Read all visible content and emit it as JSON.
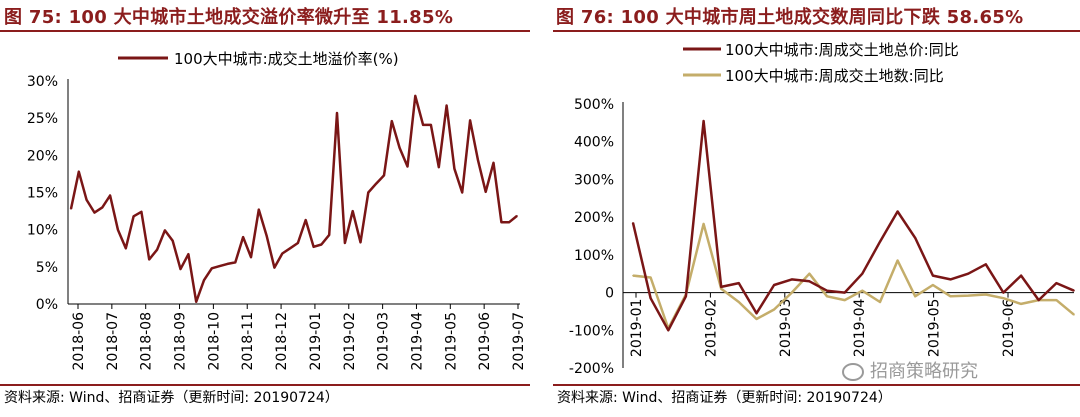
{
  "left": {
    "title": "图 75:  100 大中城市土地成交溢价率微升至 11.85%",
    "source": "资料来源:  Wind、招商证券（更新时间:  20190724）"
  },
  "right": {
    "title": "图 76:  100 大中城市周土地成交数周同比下跌 58.65%",
    "source": "资料来源:  Wind、招商证券（更新时间:  20190724）"
  },
  "watermark": "招商策略研究",
  "colors": {
    "title": "#8b1d1d",
    "series_dark": "#7a1616",
    "series_gold": "#c4ad6a",
    "axis": "#000000"
  },
  "chart_data": [
    {
      "type": "line",
      "legend": [
        "100大中城市:成交土地溢价率(%)"
      ],
      "ylim": [
        0,
        30
      ],
      "yticks": [
        "0%",
        "5%",
        "10%",
        "15%",
        "20%",
        "25%",
        "30%"
      ],
      "xticks": [
        "2018-06",
        "2018-07",
        "2018-08",
        "2018-09",
        "2018-10",
        "2018-11",
        "2018-12",
        "2019-01",
        "2019-02",
        "2019-03",
        "2019-04",
        "2019-05",
        "2019-06",
        "2019-07"
      ],
      "series": [
        {
          "name": "100大中城市:成交土地溢价率(%)",
          "values": [
            12.8,
            17.8,
            14.0,
            12.3,
            13.0,
            14.6,
            10.0,
            7.5,
            11.8,
            12.4,
            6.0,
            7.3,
            9.9,
            8.5,
            4.7,
            6.7,
            0.3,
            3.2,
            4.8,
            5.1,
            5.4,
            5.6,
            9.0,
            6.3,
            12.7,
            9.2,
            4.9,
            6.8,
            7.5,
            8.2,
            11.3,
            7.7,
            8.0,
            9.3,
            25.7,
            8.2,
            12.5,
            8.3,
            15.0,
            16.2,
            17.3,
            24.6,
            21.0,
            18.5,
            28.0,
            24.1,
            24.1,
            18.4,
            26.7,
            18.2,
            15.0,
            24.7,
            19.4,
            15.1,
            19.0,
            11.0,
            11.0,
            11.85
          ]
        }
      ]
    },
    {
      "type": "line",
      "legend": [
        "100大中城市:周成交土地总价:同比",
        "100大中城市:周成交土地数:同比"
      ],
      "ylim": [
        -200,
        500
      ],
      "yticks": [
        "-200%",
        "-100%",
        "0",
        "100%",
        "200%",
        "300%",
        "400%",
        "500%"
      ],
      "xticks": [
        "2019-01",
        "2019-02",
        "2019-03",
        "2019-04",
        "2019-05",
        "2019-06"
      ],
      "series": [
        {
          "name": "100大中城市:周成交土地总价:同比",
          "values": [
            185,
            -15,
            -100,
            -10,
            455,
            15,
            25,
            -55,
            20,
            35,
            30,
            5,
            0,
            50,
            135,
            215,
            145,
            45,
            35,
            50,
            75,
            0,
            45,
            -20,
            25,
            5
          ]
        },
        {
          "name": "100大中城市:周成交土地数:同比",
          "values": [
            45,
            40,
            -95,
            -5,
            182,
            10,
            -25,
            -70,
            -45,
            0,
            50,
            -10,
            -20,
            5,
            -25,
            85,
            -10,
            20,
            -10,
            -8,
            -5,
            -15,
            -30,
            -20,
            -20,
            -58.65
          ]
        }
      ]
    }
  ]
}
